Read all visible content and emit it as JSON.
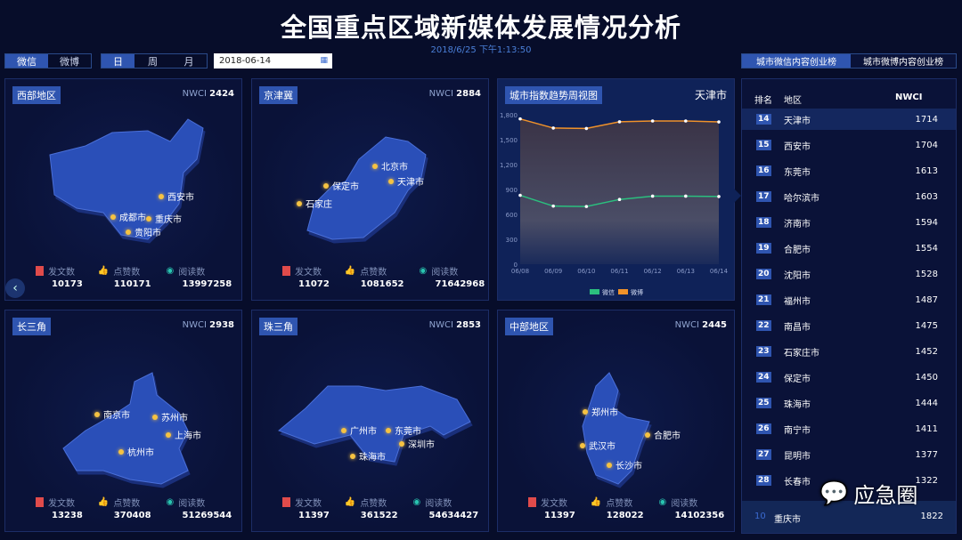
{
  "header": {
    "title": "全国重点区域新媒体发展情况分析",
    "datetime": "2018/6/25 下午1:13:50"
  },
  "controls": {
    "platform": [
      "微信",
      "微博"
    ],
    "period": [
      "日",
      "周",
      "月"
    ],
    "date": "2018-06-14",
    "calendar_icon": "calendar-icon"
  },
  "labels": {
    "nwci": "NWCI",
    "posts": "发文数",
    "likes": "点赞数",
    "reads": "阅读数"
  },
  "regions": [
    {
      "name": "西部地区",
      "nwci": "2424",
      "cities": [
        "西安市",
        "成都市",
        "重庆市",
        "贵阳市"
      ],
      "posts": "10173",
      "likes": "110171",
      "reads": "13997258"
    },
    {
      "name": "京津冀",
      "nwci": "2884",
      "cities": [
        "北京市",
        "保定市",
        "天津市",
        "石家庄"
      ],
      "posts": "11072",
      "likes": "1081652",
      "reads": "71642968"
    },
    {
      "name": "长三角",
      "nwci": "2938",
      "cities": [
        "南京市",
        "苏州市",
        "上海市",
        "杭州市"
      ],
      "posts": "13238",
      "likes": "370408",
      "reads": "51269544"
    },
    {
      "name": "珠三角",
      "nwci": "2853",
      "cities": [
        "广州市",
        "东莞市",
        "深圳市",
        "珠海市"
      ],
      "posts": "11397",
      "likes": "361522",
      "reads": "54634427"
    },
    {
      "name": "中部地区",
      "nwci": "2445",
      "cities": [
        "郑州市",
        "合肥市",
        "武汉市",
        "长沙市"
      ],
      "posts": "11397",
      "likes": "128022",
      "reads": "14102356"
    }
  ],
  "trend": {
    "title": "城市指数趋势周视图",
    "city": "天津市"
  },
  "chart_data": {
    "type": "line",
    "categories": [
      "06/08",
      "06/09",
      "06/10",
      "06/11",
      "06/12",
      "06/13",
      "06/14"
    ],
    "series": [
      {
        "name": "微信",
        "color": "#2bbf7e",
        "values": [
          830,
          700,
          695,
          780,
          820,
          820,
          815
        ]
      },
      {
        "name": "微博",
        "color": "#f0922a",
        "values": [
          1750,
          1640,
          1635,
          1715,
          1725,
          1725,
          1714
        ]
      }
    ],
    "yticks": [
      "0",
      "300",
      "600",
      "900",
      "1,200",
      "1,500",
      "1,800"
    ],
    "ylim": [
      0,
      1800
    ],
    "legend": "bottom",
    "area_fill": true
  },
  "ranking": {
    "tabs": [
      "城市微信内容创业榜",
      "城市微博内容创业榜"
    ],
    "headers": [
      "排名",
      "地区",
      "NWCI"
    ],
    "rows": [
      [
        "14",
        "天津市",
        "1714"
      ],
      [
        "15",
        "西安市",
        "1704"
      ],
      [
        "16",
        "东莞市",
        "1613"
      ],
      [
        "17",
        "哈尔滨市",
        "1603"
      ],
      [
        "18",
        "济南市",
        "1594"
      ],
      [
        "19",
        "合肥市",
        "1554"
      ],
      [
        "20",
        "沈阳市",
        "1528"
      ],
      [
        "21",
        "福州市",
        "1487"
      ],
      [
        "22",
        "南昌市",
        "1475"
      ],
      [
        "23",
        "石家庄市",
        "1452"
      ],
      [
        "24",
        "保定市",
        "1450"
      ],
      [
        "25",
        "珠海市",
        "1444"
      ],
      [
        "26",
        "南宁市",
        "1411"
      ],
      [
        "27",
        "昆明市",
        "1377"
      ],
      [
        "28",
        "长春市",
        "1322"
      ]
    ],
    "current": {
      "rank": "10",
      "city": "重庆市",
      "value": "1822"
    }
  },
  "watermark": "应急圈"
}
